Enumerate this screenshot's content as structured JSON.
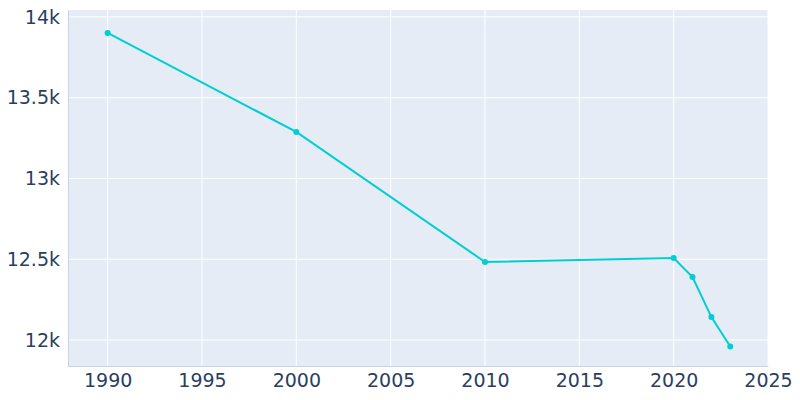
{
  "chart_data": {
    "type": "line",
    "x": [
      1990,
      2000,
      2010,
      2020,
      2021,
      2022,
      2023
    ],
    "values": [
      13901,
      13288,
      12483,
      12508,
      12390,
      12142,
      11960
    ],
    "color": "#00ced1",
    "marker": "circle",
    "xlim": [
      1987.9,
      2025
    ],
    "xticks": [
      1990,
      1995,
      2000,
      2005,
      2010,
      2015,
      2020,
      2025
    ],
    "ylim": [
      11839,
      14043
    ],
    "yticks": [
      {
        "value": 12000,
        "label": "12k"
      },
      {
        "value": 12500,
        "label": "12.5k"
      },
      {
        "value": 13000,
        "label": "13k"
      },
      {
        "value": 13500,
        "label": "13.5k"
      },
      {
        "value": 14000,
        "label": "14k"
      }
    ],
    "grid": true
  }
}
